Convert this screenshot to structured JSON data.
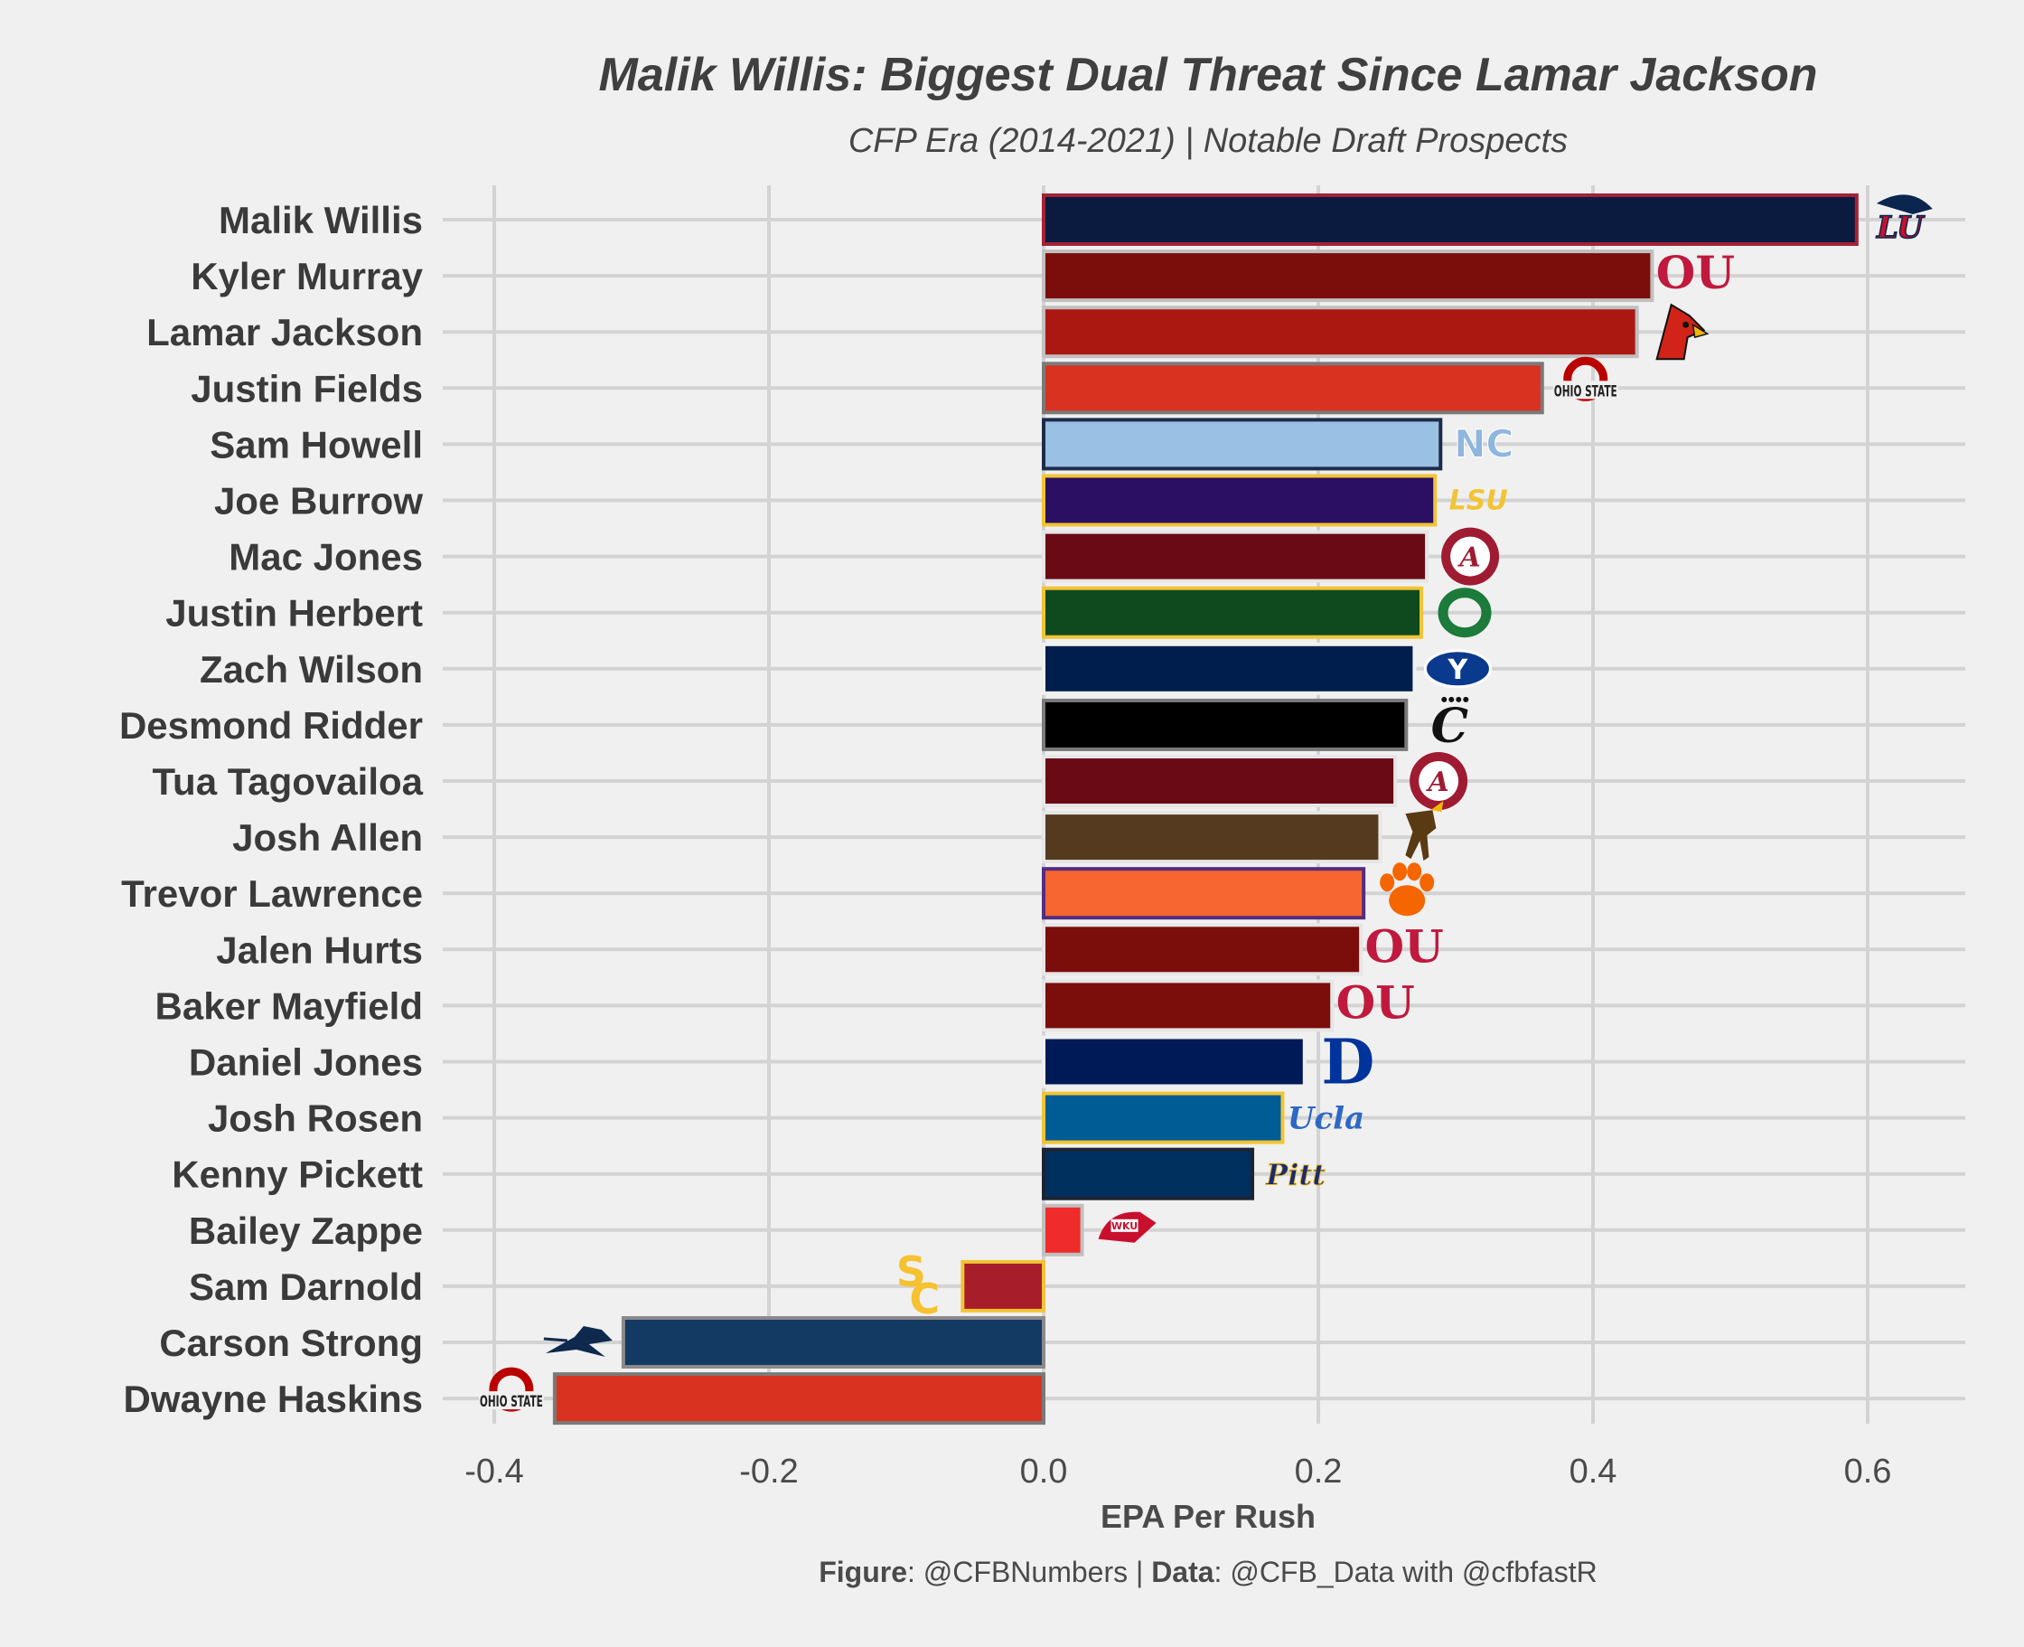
{
  "title": "Malik Willis: Biggest Dual Threat Since Lamar Jackson",
  "subtitle": "CFP Era (2014-2021) | Notable Draft Prospects",
  "caption": {
    "figure_label": "Figure",
    "figure_value": ": @CFBNumbers | ",
    "data_label": "Data",
    "data_value": ": @CFB_Data with @cfbfastR"
  },
  "chart_data": {
    "type": "bar",
    "orientation": "horizontal",
    "xlabel": "EPA Per Rush",
    "ylabel": "",
    "xlim": [
      -0.42,
      0.67
    ],
    "xticks": [
      -0.4,
      -0.2,
      0.0,
      0.2,
      0.4,
      0.6
    ],
    "xtick_labels": [
      "-0.4",
      "-0.2",
      "0.0",
      "0.2",
      "0.4",
      "0.6"
    ],
    "grid": true,
    "legend": "none",
    "bars": [
      {
        "name": "Malik Willis",
        "value": 0.592,
        "fill": "#0b1a3f",
        "stroke": "#a32236",
        "logo": "liberty-logo",
        "logo_text": "LU",
        "logo_color": "#c8102e"
      },
      {
        "name": "Kyler Murray",
        "value": 0.443,
        "fill": "#7b0d0a",
        "stroke": "#c0c0c0",
        "logo": "oklahoma-logo",
        "logo_text": "OU",
        "logo_color": "#c0193d"
      },
      {
        "name": "Lamar Jackson",
        "value": 0.432,
        "fill": "#ab1811",
        "stroke": "#c0c0c0",
        "logo": "louisville-logo",
        "logo_text": "",
        "logo_color": "#d22318"
      },
      {
        "name": "Justin Fields",
        "value": 0.363,
        "fill": "#d93221",
        "stroke": "#7a7a7a",
        "logo": "ohio-state-logo",
        "logo_text": "OHIO STATE",
        "logo_color": "#bb0000"
      },
      {
        "name": "Sam Howell",
        "value": 0.289,
        "fill": "#9ac0e3",
        "stroke": "#1c2c4a",
        "logo": "unc-logo",
        "logo_text": "NC",
        "logo_color": "#8fb6dc"
      },
      {
        "name": "Joe Burrow",
        "value": 0.285,
        "fill": "#2b0f63",
        "stroke": "#f2c435",
        "logo": "lsu-logo",
        "logo_text": "LSU",
        "logo_color": "#f2c435"
      },
      {
        "name": "Mac Jones",
        "value": 0.279,
        "fill": "#6a0a15",
        "stroke": "#e6e6e6",
        "logo": "alabama-logo",
        "logo_text": "A",
        "logo_color": "#9e1b32"
      },
      {
        "name": "Justin Herbert",
        "value": 0.275,
        "fill": "#0e4a1d",
        "stroke": "#f2c435",
        "logo": "oregon-logo",
        "logo_text": "O",
        "logo_color": "#1c7a3a"
      },
      {
        "name": "Zach Wilson",
        "value": 0.27,
        "fill": "#001e4d",
        "stroke": "#f0f0f0",
        "logo": "byu-logo",
        "logo_text": "Y",
        "logo_color": "#0a3a8e"
      },
      {
        "name": "Desmond Ridder",
        "value": 0.264,
        "fill": "#000000",
        "stroke": "#7a7a7a",
        "logo": "cincinnati-logo",
        "logo_text": "C",
        "logo_color": "#111111"
      },
      {
        "name": "Tua Tagovailoa",
        "value": 0.256,
        "fill": "#6a0a15",
        "stroke": "#e6e6e6",
        "logo": "alabama-logo",
        "logo_text": "A",
        "logo_color": "#9e1b32"
      },
      {
        "name": "Josh Allen",
        "value": 0.245,
        "fill": "#553a20",
        "stroke": "#e6e6e6",
        "logo": "wyoming-logo",
        "logo_text": "",
        "logo_color": "#5a3a12"
      },
      {
        "name": "Trevor Lawrence",
        "value": 0.233,
        "fill": "#f76631",
        "stroke": "#522d80",
        "logo": "clemson-logo",
        "logo_text": "",
        "logo_color": "#f56600"
      },
      {
        "name": "Jalen Hurts",
        "value": 0.231,
        "fill": "#7b0d0a",
        "stroke": "#e6e6e6",
        "logo": "oklahoma-logo",
        "logo_text": "OU",
        "logo_color": "#c0193d"
      },
      {
        "name": "Baker Mayfield",
        "value": 0.21,
        "fill": "#7b0d0a",
        "stroke": "#e6e6e6",
        "logo": "oklahoma-logo",
        "logo_text": "OU",
        "logo_color": "#c0193d"
      },
      {
        "name": "Daniel Jones",
        "value": 0.19,
        "fill": "#001a57",
        "stroke": "#f0f0f0",
        "logo": "duke-logo",
        "logo_text": "D",
        "logo_color": "#00339b"
      },
      {
        "name": "Josh Rosen",
        "value": 0.174,
        "fill": "#005c95",
        "stroke": "#f2c435",
        "logo": "ucla-logo",
        "logo_text": "Ucla",
        "logo_color": "#2d68c4"
      },
      {
        "name": "Kenny Pickett",
        "value": 0.152,
        "fill": "#00305e",
        "stroke": "#1c2333",
        "logo": "pitt-logo",
        "logo_text": "Pitt",
        "logo_color": "#1c2a6e"
      },
      {
        "name": "Bailey Zappe",
        "value": 0.028,
        "fill": "#f02b2b",
        "stroke": "#c0c0c0",
        "logo": "wku-logo",
        "logo_text": "WKU",
        "logo_color": "#c8102e"
      },
      {
        "name": "Sam Darnold",
        "value": -0.059,
        "fill": "#a81d2a",
        "stroke": "#f2c435",
        "logo": "usc-logo",
        "logo_text": "SC",
        "logo_color": "#f7c231"
      },
      {
        "name": "Carson Strong",
        "value": -0.306,
        "fill": "#133a62",
        "stroke": "#8a8a8a",
        "logo": "nevada-logo",
        "logo_text": "",
        "logo_color": "#0d2a4e"
      },
      {
        "name": "Dwayne Haskins",
        "value": -0.356,
        "fill": "#d93221",
        "stroke": "#7a7a7a",
        "logo": "ohio-state-logo",
        "logo_text": "OHIO STATE",
        "logo_color": "#bb0000"
      }
    ]
  }
}
